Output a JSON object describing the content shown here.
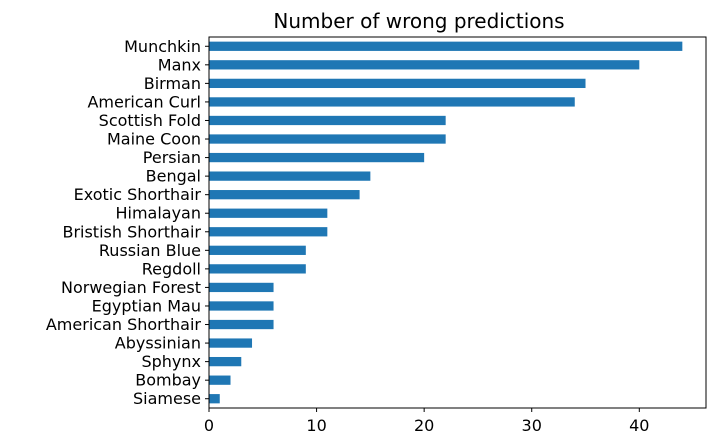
{
  "chart_data": {
    "type": "bar",
    "orientation": "horizontal",
    "title": "Number of wrong predictions",
    "xlabel": "",
    "ylabel": "",
    "categories": [
      "Munchkin",
      "Manx",
      "Birman",
      "American Curl",
      "Scottish Fold",
      "Maine Coon",
      "Persian",
      "Bengal",
      "Exotic Shorthair",
      "Himalayan",
      "Bristish Shorthair",
      "Russian Blue",
      "Regdoll",
      "Norwegian Forest",
      "Egyptian Mau",
      "American Shorthair",
      "Abyssinian",
      "Sphynx",
      "Bombay",
      "Siamese"
    ],
    "values": [
      44,
      40,
      35,
      34,
      22,
      22,
      20,
      15,
      14,
      11,
      11,
      9,
      9,
      6,
      6,
      6,
      4,
      3,
      2,
      1
    ],
    "xlim": [
      0,
      46.2
    ],
    "xticks": [
      0,
      10,
      20,
      30,
      40
    ],
    "grid": false,
    "bar_color": "#1f77b4"
  }
}
